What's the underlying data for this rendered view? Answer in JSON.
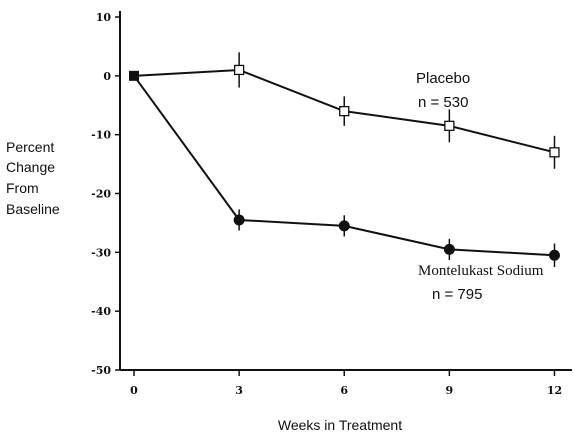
{
  "chart_data": {
    "type": "line",
    "xlabel": "Weeks in Treatment",
    "ylabel_lines": [
      "Percent",
      "Change",
      "From",
      "Baseline"
    ],
    "x_ticks": [
      0,
      3,
      6,
      9,
      12
    ],
    "y_ticks": [
      10,
      0,
      -10,
      -20,
      -30,
      -40,
      -50
    ],
    "xlim": [
      -0.4,
      12.5
    ],
    "ylim": [
      -50,
      10
    ],
    "grid": false,
    "baseline": {
      "x": 0,
      "y": 0
    },
    "series": [
      {
        "name": "Placebo",
        "n_label": "n = 530",
        "marker": "open-square",
        "x": [
          0,
          3,
          6,
          9,
          12
        ],
        "y": [
          0,
          1,
          -6,
          -8.5,
          -13
        ],
        "error": [
          0,
          3,
          2.5,
          2.8,
          2.8
        ]
      },
      {
        "name": "Montelukast Sodium",
        "n_label": "n = 795",
        "marker": "filled-circle",
        "x": [
          0,
          3,
          6,
          9,
          12
        ],
        "y": [
          0,
          -24.5,
          -25.5,
          -29.5,
          -30.5
        ],
        "error": [
          0,
          1.8,
          1.8,
          1.8,
          2
        ]
      }
    ]
  }
}
